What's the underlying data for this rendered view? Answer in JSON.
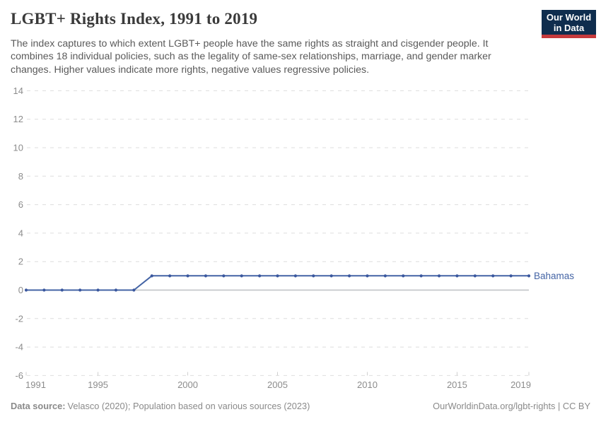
{
  "branding": {
    "logo_line1": "Our World",
    "logo_line2": "in Data"
  },
  "chart_data": {
    "type": "line",
    "title": "LGBT+ Rights Index, 1991 to 2019",
    "subtitle_lines": [
      "The index captures to which extent LGBT+ people have the same rights as straight and cisgender people. It",
      "combines 18 individual policies, such as the legality of same-sex relationships, marriage, and gender marker",
      "changes. Higher values indicate more rights, negative values regressive policies."
    ],
    "xlabel": "",
    "ylabel": "",
    "xlim": [
      1991,
      2019
    ],
    "ylim": [
      -6,
      14
    ],
    "x_ticks": [
      1991,
      1995,
      2000,
      2005,
      2010,
      2015,
      2019
    ],
    "y_ticks": [
      14,
      12,
      10,
      8,
      6,
      4,
      2,
      0,
      -2,
      -4,
      -6
    ],
    "grid": "horizontal dashed gridlines, solid zero line",
    "legend_position": "label at end of line",
    "series": [
      {
        "name": "Bahamas",
        "color": "#4464a5",
        "marker_color": "#3a579e",
        "x": [
          1991,
          1992,
          1993,
          1994,
          1995,
          1996,
          1997,
          1998,
          1999,
          2000,
          2001,
          2002,
          2003,
          2004,
          2005,
          2006,
          2007,
          2008,
          2009,
          2010,
          2011,
          2012,
          2013,
          2014,
          2015,
          2016,
          2017,
          2018,
          2019
        ],
        "values": [
          0,
          0,
          0,
          0,
          0,
          0,
          0,
          1,
          1,
          1,
          1,
          1,
          1,
          1,
          1,
          1,
          1,
          1,
          1,
          1,
          1,
          1,
          1,
          1,
          1,
          1,
          1,
          1,
          1
        ]
      }
    ]
  },
  "footer": {
    "datasource_label": "Data source:",
    "datasource_text": "Velasco (2020); Population based on various sources (2023)",
    "credit": "OurWorldinData.org/lgbt-rights | CC BY"
  },
  "colors": {
    "logo_bg": "#0f2d4e",
    "logo_accent": "#c63a3d",
    "grid": "#dedede",
    "zero_line": "#c4c7ca",
    "axis_tick": "#cfcfcf",
    "tick_label": "#8c8c8c",
    "title": "#3a3a3a",
    "subtitle": "#5a5a5a",
    "footer": "#8a8a8a"
  }
}
